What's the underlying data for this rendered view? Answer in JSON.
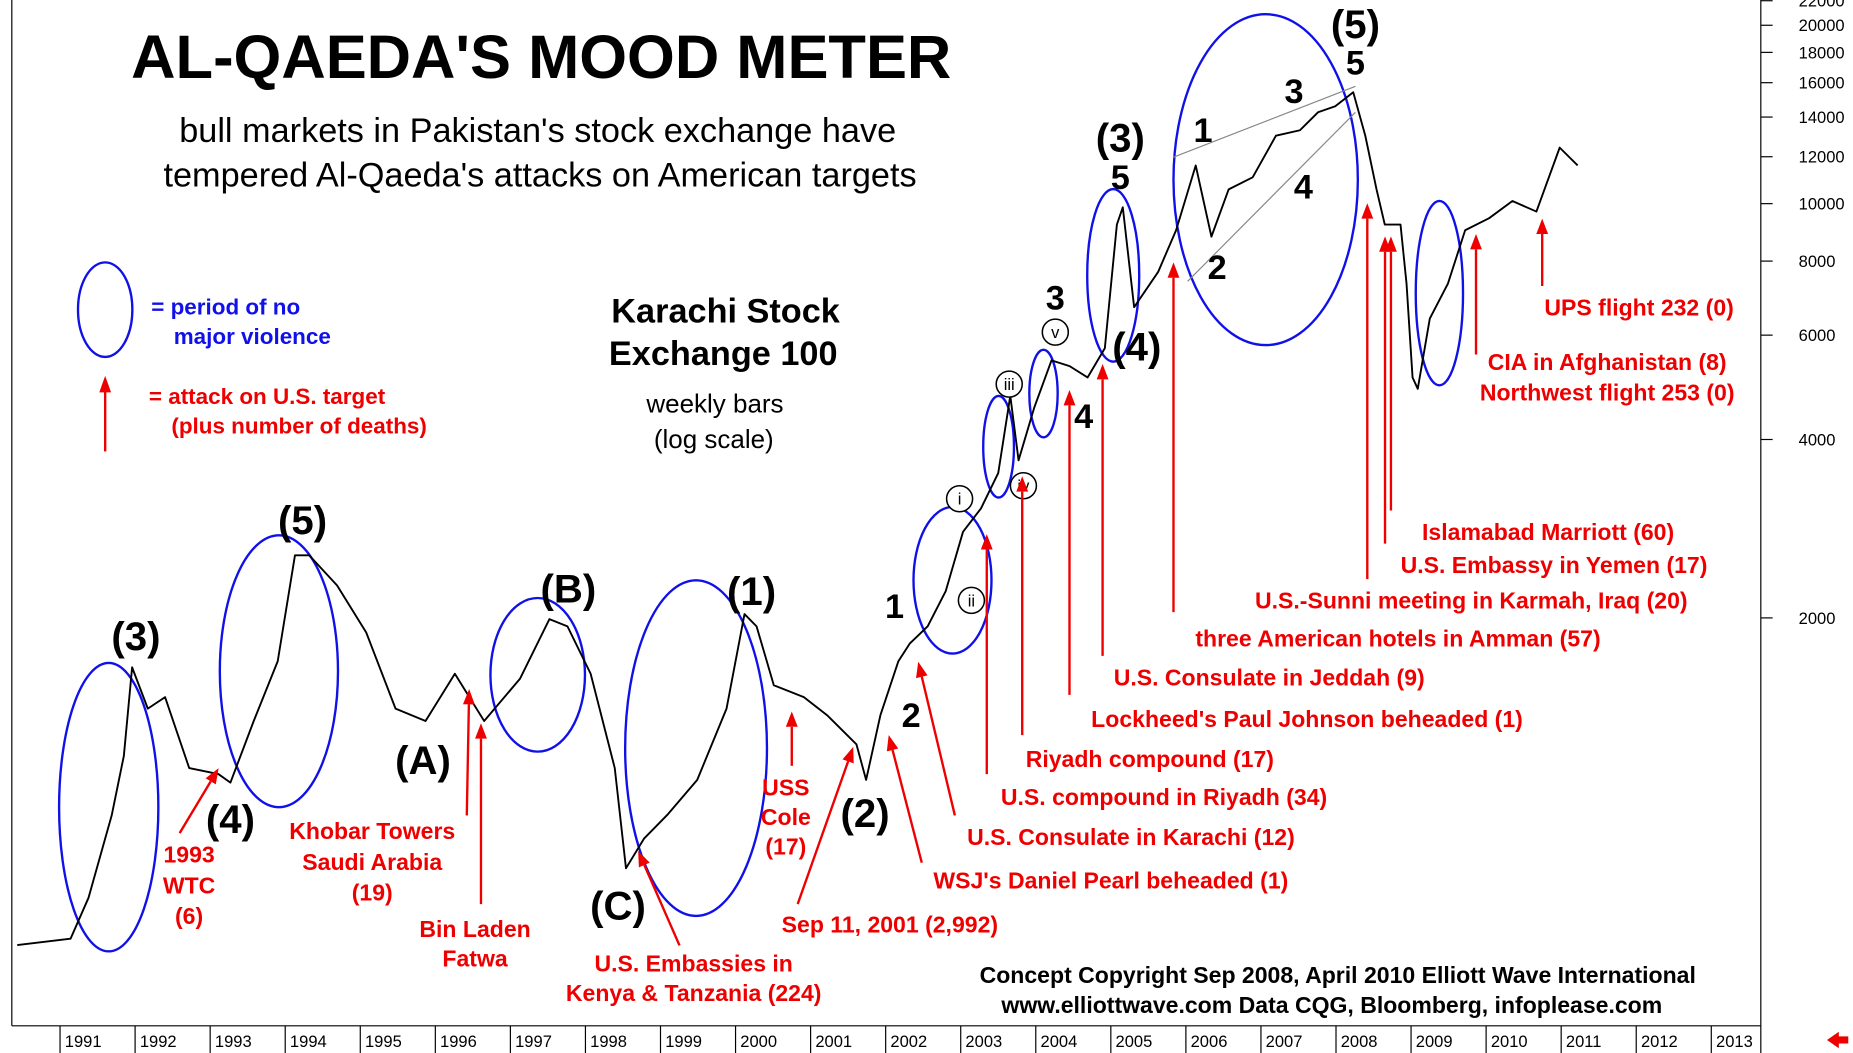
{
  "chart_data": {
    "type": "line",
    "title": "AL-QAEDA'S MOOD METER",
    "subtitle": [
      "bull markets in Pakistan's stock exchange have",
      "tempered Al-Qaeda's attacks on American targets"
    ],
    "series_label": [
      "Karachi Stock",
      "Exchange 100"
    ],
    "series_note": [
      "weekly bars",
      "(log scale)"
    ],
    "legend": {
      "calm": [
        "= period of no",
        "major violence"
      ],
      "attack": [
        "= attack on U.S. target",
        "(plus number of deaths)"
      ]
    },
    "credit": [
      "Concept Copyright Sep 2008, April 2010 Elliott Wave International",
      "www.elliottwave.com Data CQG, Bloomberg, infoplease.com"
    ],
    "color": "#000000",
    "log_scale": true,
    "x": [
      1990.43,
      1991.14,
      1991.38,
      1991.69,
      1991.85,
      1991.96,
      1992.17,
      1992.4,
      1992.72,
      1993.11,
      1993.27,
      1993.58,
      1993.9,
      1994.13,
      1994.32,
      1994.69,
      1995.08,
      1995.47,
      1995.87,
      1996.26,
      1996.65,
      1997.13,
      1997.52,
      1997.76,
      1998.07,
      1998.39,
      1998.54,
      1998.78,
      1999.09,
      1999.49,
      1999.88,
      2000.12,
      2000.28,
      2000.51,
      2000.91,
      2001.22,
      2001.61,
      2001.74,
      2001.93,
      2002.17,
      2002.32,
      2002.56,
      2002.8,
      2003.03,
      2003.27,
      2003.5,
      2003.66,
      2003.77,
      2003.98,
      2004.21,
      2004.45,
      2004.69,
      2004.92,
      2005.08,
      2005.16,
      2005.31,
      2005.63,
      2005.87,
      2006.13,
      2006.34,
      2006.57,
      2006.89,
      2007.2,
      2007.52,
      2007.76,
      2007.99,
      2008.23,
      2008.39,
      2008.54,
      2008.65,
      2008.86,
      2008.94,
      2009.02,
      2009.09,
      2009.25,
      2009.49,
      2009.72,
      2010.04,
      2010.35,
      2010.67,
      2010.98,
      2011.22
    ],
    "values": [
      561,
      575,
      674,
      930,
      1170,
      1650,
      1406,
      1470,
      1116,
      1090,
      1055,
      1340,
      1690,
      2550,
      2550,
      2270,
      1890,
      1406,
      1340,
      1610,
      1340,
      1580,
      1990,
      1935,
      1610,
      1116,
      756,
      848,
      930,
      1066,
      1406,
      2030,
      1935,
      1540,
      1470,
      1370,
      1224,
      1066,
      1370,
      1690,
      1810,
      1935,
      2220,
      2795,
      3060,
      3510,
      4740,
      3690,
      4530,
      5440,
      5320,
      5090,
      5700,
      9220,
      9860,
      6690,
      7670,
      9020,
      11600,
      8800,
      10570,
      11080,
      13020,
      13300,
      14260,
      14600,
      15420,
      13020,
      10570,
      9220,
      9220,
      7330,
      5090,
      4870,
      6400,
      7330,
      9020,
      9450,
      10100,
      9700,
      12430,
      11600
    ],
    "xlim": [
      1990.2,
      2013.66
    ],
    "xticks": [
      1991,
      1992,
      1993,
      1994,
      1995,
      1996,
      1997,
      1998,
      1999,
      2000,
      2001,
      2002,
      2003,
      2004,
      2005,
      2006,
      2007,
      2008,
      2009,
      2010,
      2011,
      2012,
      2013
    ],
    "ylim": [
      410,
      22060
    ],
    "yticks": [
      2000,
      4000,
      6000,
      8000,
      10000,
      12000,
      14000,
      16000,
      18000,
      20000,
      22000
    ],
    "wave_labels": [
      "(3)",
      "(4)",
      "(5)",
      "(A)",
      "(B)",
      "(C)",
      "(1)",
      "(2)",
      "1",
      "2",
      "(3)",
      "5",
      "3",
      "4",
      "(4)",
      "1",
      "2",
      "3",
      "4",
      "(5)",
      "5"
    ],
    "subwave_labels": [
      "i",
      "ii",
      "iii",
      "iv",
      "v"
    ],
    "attacks": [
      [
        "1993",
        "WTC",
        "(6)"
      ],
      [
        "Khobar Towers",
        "Saudi Arabia",
        "(19)"
      ],
      [
        "Bin Laden",
        "Fatwa"
      ],
      [
        "U.S. Embassies in",
        "Kenya & Tanzania (224)"
      ],
      [
        "USS",
        "Cole",
        "(17)"
      ],
      [
        "Sep 11, 2001 (2,992)"
      ],
      [
        "WSJ's Daniel Pearl beheaded (1)"
      ],
      [
        "U.S. Consulate in Karachi (12)"
      ],
      [
        "U.S. compound in Riyadh (34)"
      ],
      [
        "Riyadh compound (17)"
      ],
      [
        "Lockheed's Paul Johnson beheaded (1)"
      ],
      [
        "U.S. Consulate in Jeddah (9)"
      ],
      [
        "three American hotels in Amman (57)"
      ],
      [
        "U.S.-Sunni meeting in Karmah, Iraq (20)"
      ],
      [
        "U.S. Embassy in Yemen (17)"
      ],
      [
        "Islamabad Marriott (60)"
      ],
      [
        "CIA in Afghanistan (8)",
        "Northwest flight 253 (0)"
      ],
      [
        "UPS flight 232 (0)"
      ]
    ]
  }
}
